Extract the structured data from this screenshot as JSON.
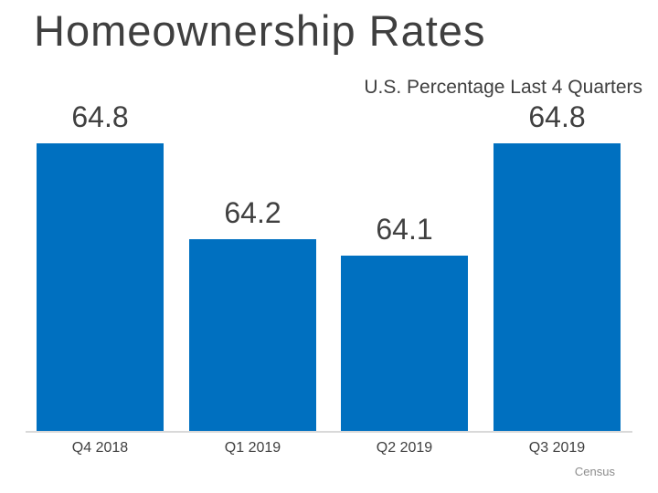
{
  "colors": {
    "bar": "#0070C0",
    "title_text": "#3F3F3F",
    "label_text": "#404040",
    "axis_line": "#D9D9D9",
    "source_text": "#8C8C8C",
    "background": "#FFFFFF"
  },
  "chart_data": {
    "type": "bar",
    "title": "Homeownership Rates",
    "subtitle": "U.S. Percentage Last 4 Quarters",
    "categories": [
      "Q4 2018",
      "Q1 2019",
      "Q2 2019",
      "Q3 2019"
    ],
    "values": [
      64.8,
      64.2,
      64.1,
      64.8
    ],
    "value_labels": [
      "64.8",
      "64.2",
      "64.1",
      "64.8"
    ],
    "xlabel": "",
    "ylabel": "",
    "ylim": [
      63.0,
      65.0
    ],
    "grid": false,
    "legend": false,
    "y_axis_shown": false,
    "source": "Census"
  }
}
